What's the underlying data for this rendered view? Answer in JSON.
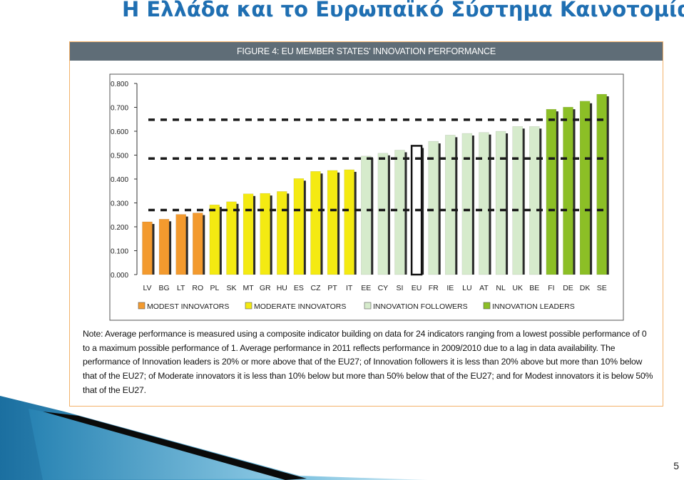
{
  "slide": {
    "title": "Η Ελλάδα και το Ευρωπαϊκό Σύστημα Καινοτομίας",
    "page_number": "5"
  },
  "figure": {
    "header": "FIGURE 4: EU MEMBER STATES' INNOVATION PERFORMANCE",
    "note": "Note: Average performance is measured using a composite indicator building on data for 24 indicators ranging from a lowest possible performance of 0 to a maximum possible performance of 1. Average performance in 2011 reflects performance in 2009/2010 due to a lag in data availability. The performance of Innovation leaders is 20% or more above that of the EU27; of Innovation followers it is less than 20% above but more than 10% below that of the EU27; of Moderate innovators it is less than 10% below but more than 50% below that of the EU27; and for Modest innovators it is below 50% that of the EU27."
  },
  "colors": {
    "modest": "#f39a2e",
    "moderate": "#f4ea12",
    "followers": "#d6ebcc",
    "leaders": "#8cbf26",
    "eu": "#ffffff"
  },
  "chart_data": {
    "type": "bar",
    "title": "",
    "xlabel": "",
    "ylabel": "",
    "ylim": [
      0,
      0.8
    ],
    "yticks": [
      "0.000",
      "0.100",
      "0.200",
      "0.300",
      "0.400",
      "0.500",
      "0.600",
      "0.700",
      "0.800"
    ],
    "categories": [
      "LV",
      "BG",
      "LT",
      "RO",
      "PL",
      "SK",
      "MT",
      "GR",
      "HU",
      "ES",
      "CZ",
      "PT",
      "IT",
      "EE",
      "CY",
      "SI",
      "EU",
      "FR",
      "IE",
      "LU",
      "AT",
      "NL",
      "UK",
      "BE",
      "FI",
      "DE",
      "DK",
      "SE"
    ],
    "values": [
      0.221,
      0.232,
      0.252,
      0.258,
      0.292,
      0.305,
      0.338,
      0.34,
      0.348,
      0.402,
      0.432,
      0.436,
      0.439,
      0.496,
      0.508,
      0.521,
      0.539,
      0.558,
      0.584,
      0.591,
      0.595,
      0.6,
      0.62,
      0.62,
      0.692,
      0.701,
      0.726,
      0.755
    ],
    "groups": [
      "modest",
      "modest",
      "modest",
      "modest",
      "moderate",
      "moderate",
      "moderate",
      "moderate",
      "moderate",
      "moderate",
      "moderate",
      "moderate",
      "moderate",
      "followers",
      "followers",
      "followers",
      "eu",
      "followers",
      "followers",
      "followers",
      "followers",
      "followers",
      "followers",
      "followers",
      "leaders",
      "leaders",
      "leaders",
      "leaders"
    ],
    "threshold_lines": [
      0.648,
      0.486,
      0.27
    ],
    "legend": [
      {
        "key": "modest",
        "label": "MODEST INNOVATORS"
      },
      {
        "key": "moderate",
        "label": "MODERATE INNOVATORS"
      },
      {
        "key": "followers",
        "label": "INNOVATION FOLLOWERS"
      },
      {
        "key": "leaders",
        "label": "INNOVATION LEADERS"
      }
    ],
    "legend_position": "bottom",
    "grid": false
  }
}
